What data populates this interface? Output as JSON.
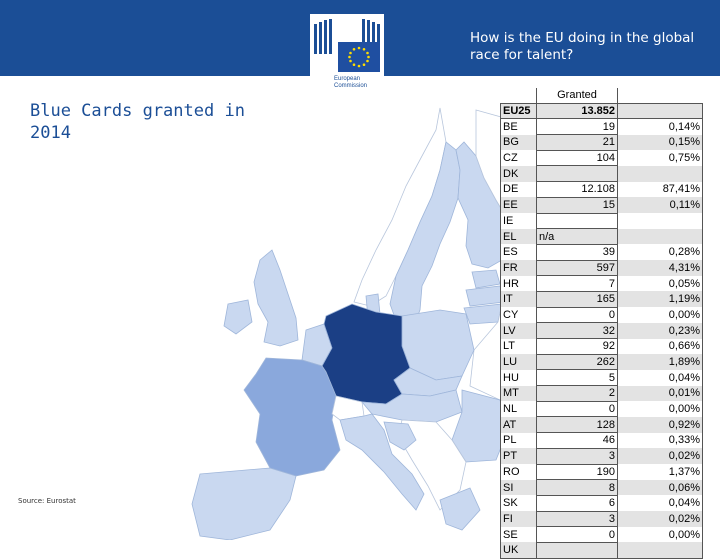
{
  "header": {
    "title": "How is the EU doing in the global race for talent?",
    "logo_line1": "European",
    "logo_line2": "Commission"
  },
  "page_title": "Blue Cards granted in 2014",
  "source": "Source: Eurostat",
  "colors": {
    "header_blue": "#1b4e96",
    "map_light": "#c9d8f0",
    "map_medium": "#8aa8dc",
    "map_dark": "#1b3f85",
    "map_nonEU": "#ffffff"
  },
  "table": {
    "column_header": "Granted",
    "total": {
      "code": "EU25",
      "granted": "13.852"
    },
    "rows": [
      {
        "code": "BE",
        "granted": "19",
        "share": "0,14%"
      },
      {
        "code": "BG",
        "granted": "21",
        "share": "0,15%"
      },
      {
        "code": "CZ",
        "granted": "104",
        "share": "0,75%"
      },
      {
        "code": "DK",
        "granted": "",
        "share": ""
      },
      {
        "code": "DE",
        "granted": "12.108",
        "share": "87,41%"
      },
      {
        "code": "EE",
        "granted": "15",
        "share": "0,11%"
      },
      {
        "code": "IE",
        "granted": "",
        "share": ""
      },
      {
        "code": "EL",
        "granted": "n/a",
        "share": ""
      },
      {
        "code": "ES",
        "granted": "39",
        "share": "0,28%"
      },
      {
        "code": "FR",
        "granted": "597",
        "share": "4,31%"
      },
      {
        "code": "HR",
        "granted": "7",
        "share": "0,05%"
      },
      {
        "code": "IT",
        "granted": "165",
        "share": "1,19%"
      },
      {
        "code": "CY",
        "granted": "0",
        "share": "0,00%"
      },
      {
        "code": "LV",
        "granted": "32",
        "share": "0,23%"
      },
      {
        "code": "LT",
        "granted": "92",
        "share": "0,66%"
      },
      {
        "code": "LU",
        "granted": "262",
        "share": "1,89%"
      },
      {
        "code": "HU",
        "granted": "5",
        "share": "0,04%"
      },
      {
        "code": "MT",
        "granted": "2",
        "share": "0,01%"
      },
      {
        "code": "NL",
        "granted": "0",
        "share": "0,00%"
      },
      {
        "code": "AT",
        "granted": "128",
        "share": "0,92%"
      },
      {
        "code": "PL",
        "granted": "46",
        "share": "0,33%"
      },
      {
        "code": "PT",
        "granted": "3",
        "share": "0,02%"
      },
      {
        "code": "RO",
        "granted": "190",
        "share": "1,37%"
      },
      {
        "code": "SI",
        "granted": "8",
        "share": "0,06%"
      },
      {
        "code": "SK",
        "granted": "6",
        "share": "0,04%"
      },
      {
        "code": "FI",
        "granted": "3",
        "share": "0,02%"
      },
      {
        "code": "SE",
        "granted": "0",
        "share": "0,00%"
      },
      {
        "code": "UK",
        "granted": "",
        "share": ""
      }
    ]
  }
}
